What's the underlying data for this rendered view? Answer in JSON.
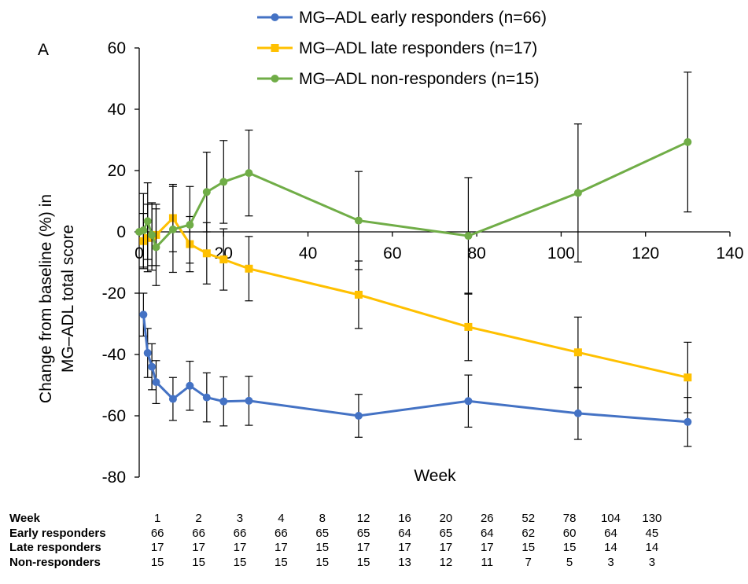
{
  "chart_data": {
    "type": "line",
    "panel_label": "A",
    "xlabel": "Week",
    "ylabel_lines": [
      "Change from baseline (%) in",
      "MG–ADL total score"
    ],
    "xlim": [
      0,
      140
    ],
    "ylim": [
      -80,
      60
    ],
    "x_ticks": [
      0,
      20,
      40,
      60,
      80,
      100,
      120,
      140
    ],
    "y_ticks": [
      60,
      40,
      20,
      0,
      -20,
      -40,
      -60,
      -80
    ],
    "grid": false,
    "legend_position": "top",
    "series": [
      {
        "name": "MG–ADL early responders (n=66)",
        "color": "#4472C4",
        "marker": "circle",
        "x": [
          1,
          2,
          3,
          4,
          8,
          12,
          16,
          20,
          26,
          52,
          78,
          104,
          130
        ],
        "y": [
          -27,
          -39.5,
          -44,
          -49,
          -54.5,
          -50.2,
          -54,
          -55.3,
          -55.1,
          -60,
          -55.2,
          -59.2,
          -62
        ],
        "err": [
          7,
          8,
          7.5,
          7,
          7,
          8,
          8,
          8,
          8,
          7,
          8.5,
          8.5,
          8
        ]
      },
      {
        "name": "MG–ADL late responders (n=17)",
        "color": "#FFC000",
        "marker": "square",
        "x": [
          1,
          2,
          3,
          4,
          8,
          12,
          16,
          20,
          26,
          52,
          78,
          104,
          130
        ],
        "y": [
          -3,
          -2,
          -1.5,
          -1,
          4.5,
          -4,
          -7,
          -9,
          -12,
          -20.5,
          -31,
          -39.3,
          -47.5
        ],
        "err": [
          9,
          11,
          11,
          10,
          11,
          9,
          10,
          10,
          10.5,
          11,
          11,
          11.5,
          11.5
        ]
      },
      {
        "name": "MG–ADL non-responders (n=15)",
        "color": "#70AD47",
        "marker": "circle",
        "x": [
          0,
          1,
          2,
          3,
          4,
          8,
          12,
          16,
          20,
          26,
          52,
          78,
          104,
          130
        ],
        "y": [
          0,
          0.5,
          3.5,
          -1,
          -5,
          0.8,
          2.3,
          13,
          16.3,
          19.2,
          3.7,
          -1.3,
          12.7,
          29.3
        ],
        "err": [
          0,
          12,
          12.5,
          10,
          12.5,
          14,
          12.5,
          13,
          13.5,
          14,
          16,
          19,
          22.5,
          22.8
        ]
      }
    ]
  },
  "n_table": {
    "rows": [
      {
        "label": "Week",
        "values": [
          "1",
          "2",
          "3",
          "4",
          "8",
          "12",
          "16",
          "20",
          "26",
          "52",
          "78",
          "104",
          "130"
        ]
      },
      {
        "label": "Early responders",
        "values": [
          "66",
          "66",
          "66",
          "66",
          "65",
          "65",
          "64",
          "65",
          "64",
          "62",
          "60",
          "64",
          "45"
        ]
      },
      {
        "label": "Late responders",
        "values": [
          "17",
          "17",
          "17",
          "17",
          "15",
          "17",
          "17",
          "17",
          "17",
          "15",
          "15",
          "14",
          "14"
        ]
      },
      {
        "label": "Non-responders",
        "values": [
          "15",
          "15",
          "15",
          "15",
          "15",
          "15",
          "13",
          "12",
          "11",
          "7",
          "5",
          "3",
          "3"
        ]
      }
    ]
  }
}
